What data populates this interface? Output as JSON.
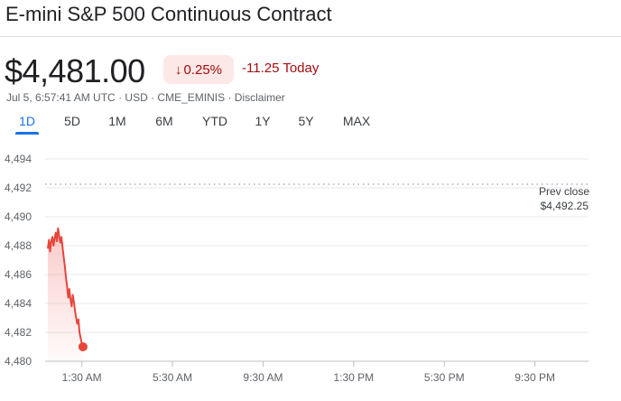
{
  "header": {
    "title": "E-mini S&P 500 Continuous Contract",
    "price": "$4,481.00",
    "change_percent": "0.25%",
    "change_value": "-11.25 Today",
    "arrow_icon": "arrow-down-icon",
    "meta_time": "Jul 5, 6:57:41 AM UTC",
    "meta_currency": "USD",
    "meta_exchange": "CME_EMINIS",
    "meta_disclaimer": "Disclaimer",
    "meta_sep": " · "
  },
  "tabs": [
    "1D",
    "5D",
    "1M",
    "6M",
    "YTD",
    "1Y",
    "5Y",
    "MAX"
  ],
  "active_tab": "1D",
  "colors": {
    "down": "#a50e0e",
    "line": "#e8453c",
    "accent": "#1a73e8",
    "grid": "#e8eaed",
    "badge_bg": "#fce8e6"
  },
  "chart_data": {
    "type": "area",
    "y_ticks": [
      4480,
      4482,
      4484,
      4486,
      4488,
      4490,
      4492,
      4494
    ],
    "y_tick_labels": [
      "4,480",
      "4,482",
      "4,484",
      "4,486",
      "4,488",
      "4,490",
      "4,492",
      "4,494"
    ],
    "ylim": [
      4480,
      4494
    ],
    "x_tick_labels": [
      "1:30 AM",
      "5:30 AM",
      "9:30 AM",
      "1:30 PM",
      "5:30 PM",
      "9:30 PM"
    ],
    "x_tick_hours": [
      1.5,
      5.5,
      9.5,
      13.5,
      17.5,
      21.5
    ],
    "xlim_hours": [
      0,
      24
    ],
    "prev_close": 4492.25,
    "prev_close_label": "Prev close",
    "prev_close_value_label": "$4,492.25",
    "series": [
      {
        "x_hours": [
          0.0,
          0.05,
          0.1,
          0.15,
          0.2,
          0.25,
          0.3,
          0.35,
          0.4,
          0.45,
          0.5,
          0.55,
          0.6,
          0.65,
          0.7,
          0.75,
          0.8,
          0.85,
          0.9,
          0.95,
          1.0,
          1.05,
          1.1,
          1.15,
          1.2,
          1.25,
          1.3,
          1.35,
          1.4,
          1.45,
          1.5,
          1.55
        ],
        "values": [
          4487.8,
          4488.4,
          4487.6,
          4488.3,
          4488.6,
          4488.0,
          4488.5,
          4488.9,
          4488.3,
          4489.2,
          4488.7,
          4488.2,
          4488.6,
          4487.9,
          4487.2,
          4486.6,
          4485.8,
          4485.2,
          4484.4,
          4485.0,
          4484.3,
          4483.8,
          4484.6,
          4484.1,
          4483.5,
          4483.0,
          4482.6,
          4482.9,
          4482.0,
          4481.6,
          4481.2,
          4481.0
        ]
      }
    ]
  }
}
